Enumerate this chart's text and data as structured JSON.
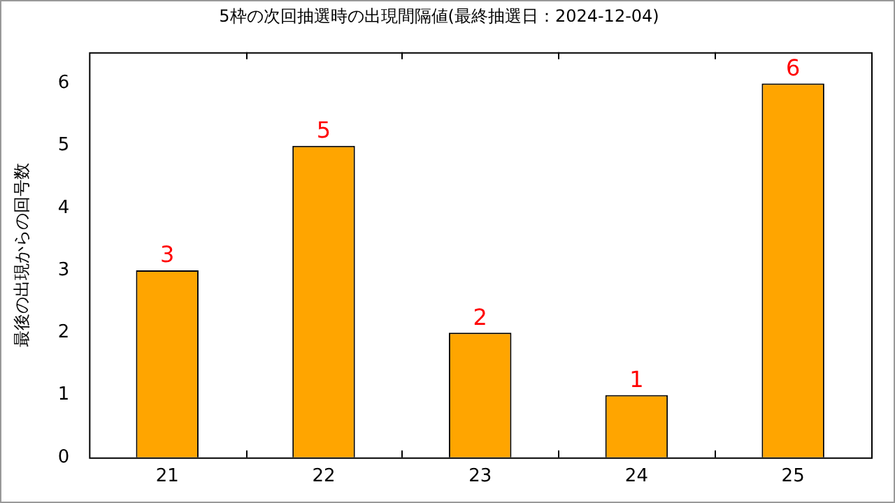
{
  "chart_data": {
    "type": "bar",
    "title": "5枠の次回抽選時の出現間隔値(最終抽選日：2024-12-04)",
    "ylabel": "最後の出現からの回号数",
    "categories": [
      "21",
      "22",
      "23",
      "24",
      "25"
    ],
    "values": [
      3,
      5,
      2,
      1,
      6
    ],
    "color": "#ffa500",
    "ylim": [
      0,
      6.5
    ],
    "yticks": [
      0,
      1,
      2,
      3,
      4,
      5,
      6
    ],
    "grid": false,
    "legend": false,
    "data_labels": true
  }
}
